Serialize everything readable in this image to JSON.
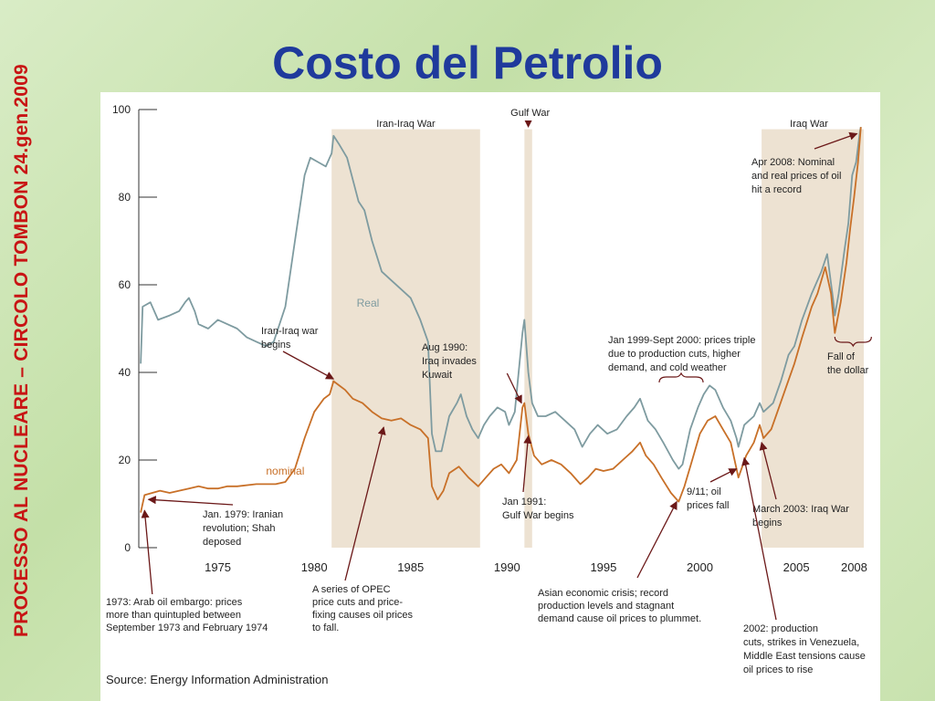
{
  "slide": {
    "title": "Costo del Petrolio",
    "side_label": "PROCESSO AL NUCLEARE – CIRCOLO TOMBON 24.gen.2009"
  },
  "colors": {
    "title": "#1f3a9c",
    "side_label": "#c81414",
    "real": "#7e9ba0",
    "nominal": "#c87028",
    "shade": "#ede2d2",
    "arrow": "#6b1818",
    "text": "#222222"
  },
  "chart_data": {
    "type": "line",
    "title": "",
    "source": "Source: Energy Information Administration",
    "xlim": [
      1970.9,
      2008.5
    ],
    "ylim": [
      0,
      100
    ],
    "x_ticks": [
      {
        "value": 1975,
        "label": "1975"
      },
      {
        "value": 1980,
        "label": "1980"
      },
      {
        "value": 1985,
        "label": "1985"
      },
      {
        "value": 1990,
        "label": "1990"
      },
      {
        "value": 1995,
        "label": "1995"
      },
      {
        "value": 2000,
        "label": "2000"
      },
      {
        "value": 2005,
        "label": "2005"
      },
      {
        "value": 2008,
        "label": "2008"
      }
    ],
    "y_ticks": [
      {
        "value": 0,
        "label": "0"
      },
      {
        "value": 20,
        "label": "20"
      },
      {
        "value": 40,
        "label": "40"
      },
      {
        "value": 60,
        "label": "60"
      },
      {
        "value": 80,
        "label": "80"
      },
      {
        "value": 100,
        "label": "100"
      }
    ],
    "series": [
      {
        "name": "Real",
        "label_at": {
          "x": 1982.2,
          "y": 55
        },
        "points": [
          [
            1971.0,
            42
          ],
          [
            1971.1,
            55
          ],
          [
            1971.5,
            56
          ],
          [
            1971.9,
            52
          ],
          [
            1972.5,
            53
          ],
          [
            1973.0,
            54
          ],
          [
            1973.3,
            56
          ],
          [
            1973.5,
            57
          ],
          [
            1973.8,
            54
          ],
          [
            1974.0,
            51
          ],
          [
            1974.5,
            50
          ],
          [
            1975.0,
            52
          ],
          [
            1975.5,
            51
          ],
          [
            1976.0,
            50
          ],
          [
            1976.5,
            48
          ],
          [
            1977.0,
            47
          ],
          [
            1977.5,
            46
          ],
          [
            1977.9,
            47
          ],
          [
            1978.5,
            55
          ],
          [
            1979.0,
            70
          ],
          [
            1979.5,
            85
          ],
          [
            1979.8,
            89
          ],
          [
            1980.2,
            88
          ],
          [
            1980.6,
            87
          ],
          [
            1980.9,
            90
          ],
          [
            1981.0,
            94
          ],
          [
            1981.3,
            92
          ],
          [
            1981.7,
            89
          ],
          [
            1982.0,
            84
          ],
          [
            1982.3,
            79
          ],
          [
            1982.6,
            77
          ],
          [
            1983.0,
            70
          ],
          [
            1983.5,
            63
          ],
          [
            1984.0,
            61
          ],
          [
            1984.5,
            59
          ],
          [
            1985.0,
            57
          ],
          [
            1985.5,
            52
          ],
          [
            1985.9,
            47
          ],
          [
            1986.1,
            26
          ],
          [
            1986.3,
            22
          ],
          [
            1986.6,
            22
          ],
          [
            1987.0,
            30
          ],
          [
            1987.4,
            33
          ],
          [
            1987.6,
            35
          ],
          [
            1987.9,
            30
          ],
          [
            1988.2,
            27
          ],
          [
            1988.5,
            25
          ],
          [
            1988.8,
            28
          ],
          [
            1989.1,
            30
          ],
          [
            1989.5,
            32
          ],
          [
            1989.9,
            31
          ],
          [
            1990.1,
            28
          ],
          [
            1990.4,
            31
          ],
          [
            1990.8,
            49
          ],
          [
            1990.9,
            52
          ],
          [
            1991.1,
            40
          ],
          [
            1991.3,
            33
          ],
          [
            1991.6,
            30
          ],
          [
            1992.0,
            30
          ],
          [
            1992.5,
            31
          ],
          [
            1993.0,
            29
          ],
          [
            1993.5,
            27
          ],
          [
            1993.9,
            23
          ],
          [
            1994.3,
            26
          ],
          [
            1994.7,
            28
          ],
          [
            1995.2,
            26
          ],
          [
            1995.7,
            27
          ],
          [
            1996.2,
            30
          ],
          [
            1996.6,
            32
          ],
          [
            1996.9,
            34
          ],
          [
            1997.3,
            29
          ],
          [
            1997.7,
            27
          ],
          [
            1998.1,
            24
          ],
          [
            1998.6,
            20
          ],
          [
            1998.9,
            18
          ],
          [
            1999.1,
            19
          ],
          [
            1999.5,
            27
          ],
          [
            1999.9,
            32
          ],
          [
            2000.2,
            35
          ],
          [
            2000.5,
            37
          ],
          [
            2000.8,
            36
          ],
          [
            2001.2,
            32
          ],
          [
            2001.6,
            29
          ],
          [
            2001.9,
            25
          ],
          [
            2002.0,
            23
          ],
          [
            2002.3,
            28
          ],
          [
            2002.8,
            30
          ],
          [
            2003.1,
            33
          ],
          [
            2003.3,
            31
          ],
          [
            2003.8,
            33
          ],
          [
            2004.2,
            38
          ],
          [
            2004.6,
            44
          ],
          [
            2004.9,
            46
          ],
          [
            2005.3,
            52
          ],
          [
            2005.8,
            58
          ],
          [
            2006.0,
            60
          ],
          [
            2006.3,
            63
          ],
          [
            2006.6,
            67
          ],
          [
            2006.9,
            57
          ],
          [
            2007.0,
            53
          ],
          [
            2007.2,
            58
          ],
          [
            2007.5,
            68
          ],
          [
            2007.7,
            74
          ],
          [
            2007.9,
            85
          ],
          [
            2008.1,
            88
          ],
          [
            2008.3,
            95
          ],
          [
            2008.35,
            96
          ]
        ]
      },
      {
        "name": "nominal",
        "label_at": {
          "x": 1977.5,
          "y": 16.7
        },
        "points": [
          [
            1971.0,
            8
          ],
          [
            1971.2,
            12
          ],
          [
            1971.6,
            12.5
          ],
          [
            1972.0,
            13
          ],
          [
            1972.5,
            12.5
          ],
          [
            1973.0,
            13
          ],
          [
            1973.5,
            13.5
          ],
          [
            1974.0,
            14
          ],
          [
            1974.5,
            13.5
          ],
          [
            1975.0,
            13.5
          ],
          [
            1975.5,
            14
          ],
          [
            1976.0,
            14
          ],
          [
            1977.0,
            14.5
          ],
          [
            1978.0,
            14.5
          ],
          [
            1978.5,
            15
          ],
          [
            1979.0,
            18
          ],
          [
            1979.5,
            25
          ],
          [
            1980.0,
            31
          ],
          [
            1980.5,
            34
          ],
          [
            1980.8,
            35
          ],
          [
            1981.0,
            38
          ],
          [
            1981.3,
            37
          ],
          [
            1981.6,
            36
          ],
          [
            1982.0,
            34
          ],
          [
            1982.5,
            33
          ],
          [
            1983.0,
            31
          ],
          [
            1983.5,
            29.5
          ],
          [
            1984.0,
            29
          ],
          [
            1984.5,
            29.5
          ],
          [
            1985.0,
            28
          ],
          [
            1985.5,
            27
          ],
          [
            1985.9,
            25
          ],
          [
            1986.1,
            14
          ],
          [
            1986.4,
            11
          ],
          [
            1986.7,
            13
          ],
          [
            1987.0,
            17
          ],
          [
            1987.5,
            18.5
          ],
          [
            1988.0,
            16
          ],
          [
            1988.5,
            14
          ],
          [
            1988.9,
            16
          ],
          [
            1989.3,
            18
          ],
          [
            1989.7,
            19
          ],
          [
            1990.1,
            17
          ],
          [
            1990.5,
            20
          ],
          [
            1990.8,
            32
          ],
          [
            1990.9,
            33
          ],
          [
            1991.1,
            26
          ],
          [
            1991.4,
            21
          ],
          [
            1991.8,
            19
          ],
          [
            1992.3,
            20
          ],
          [
            1992.8,
            19
          ],
          [
            1993.3,
            17
          ],
          [
            1993.8,
            14.5
          ],
          [
            1994.2,
            16
          ],
          [
            1994.6,
            18
          ],
          [
            1995.0,
            17.5
          ],
          [
            1995.5,
            18
          ],
          [
            1996.0,
            20
          ],
          [
            1996.5,
            22
          ],
          [
            1996.9,
            24
          ],
          [
            1997.2,
            21
          ],
          [
            1997.6,
            19
          ],
          [
            1998.0,
            16
          ],
          [
            1998.5,
            12.5
          ],
          [
            1998.9,
            10.5
          ],
          [
            1999.2,
            14
          ],
          [
            1999.6,
            20
          ],
          [
            2000.0,
            26
          ],
          [
            2000.4,
            29
          ],
          [
            2000.8,
            30
          ],
          [
            2001.2,
            27
          ],
          [
            2001.6,
            24
          ],
          [
            2001.9,
            18
          ],
          [
            2002.0,
            16
          ],
          [
            2002.4,
            21
          ],
          [
            2002.8,
            24
          ],
          [
            2003.1,
            28
          ],
          [
            2003.3,
            25
          ],
          [
            2003.7,
            27
          ],
          [
            2004.1,
            32
          ],
          [
            2004.5,
            37
          ],
          [
            2004.9,
            42
          ],
          [
            2005.3,
            48
          ],
          [
            2005.8,
            55
          ],
          [
            2006.1,
            58
          ],
          [
            2006.5,
            64
          ],
          [
            2006.8,
            58
          ],
          [
            2007.0,
            49
          ],
          [
            2007.3,
            56
          ],
          [
            2007.6,
            65
          ],
          [
            2007.8,
            73
          ],
          [
            2008.0,
            80
          ],
          [
            2008.2,
            88
          ],
          [
            2008.35,
            96
          ]
        ]
      }
    ],
    "shaded_periods": [
      {
        "name": "Iran-Iraq War",
        "start": 1980.9,
        "end": 1988.6,
        "label": "Iran-Iraq War"
      },
      {
        "name": "Gulf War",
        "start": 1990.9,
        "end": 1991.3,
        "label": "Gulf War"
      },
      {
        "name": "Iraq War",
        "start": 2003.2,
        "end": 2008.5,
        "label": "Iraq War"
      }
    ],
    "annotations": [
      {
        "lines": [
          "1973: Arab oil embargo: prices",
          "more than quintupled between",
          "September 1973 and February 1974"
        ]
      },
      {
        "lines": [
          "Jan. 1979: Iranian",
          "revolution; Shah",
          "deposed"
        ]
      },
      {
        "lines": [
          "Iran-Iraq war",
          "begins"
        ]
      },
      {
        "lines": [
          "A series of OPEC",
          "price cuts and price-",
          "fixing causes oil prices",
          "to fall."
        ]
      },
      {
        "lines": [
          "Aug 1990:",
          "Iraq invades",
          "Kuwait"
        ]
      },
      {
        "lines": [
          "Jan 1991:",
          "Gulf War begins"
        ]
      },
      {
        "lines": [
          "Asian economic crisis; record",
          "production levels and stagnant",
          "demand cause oil prices to plummet."
        ]
      },
      {
        "lines": [
          "Jan 1999-Sept 2000: prices triple",
          "due to production cuts, higher",
          "demand, and cold weather"
        ]
      },
      {
        "lines": [
          "9/11; oil",
          "prices fall"
        ]
      },
      {
        "lines": [
          "March 2003: Iraq War",
          "begins"
        ]
      },
      {
        "lines": [
          "2002: production",
          "cuts, strikes in Venezuela,",
          "Middle East tensions cause",
          "oil prices to rise"
        ]
      },
      {
        "lines": [
          "Apr 2008: Nominal",
          "and real prices of oil",
          "hit a record"
        ]
      },
      {
        "lines": [
          "Fall of",
          "the dollar"
        ]
      }
    ]
  }
}
